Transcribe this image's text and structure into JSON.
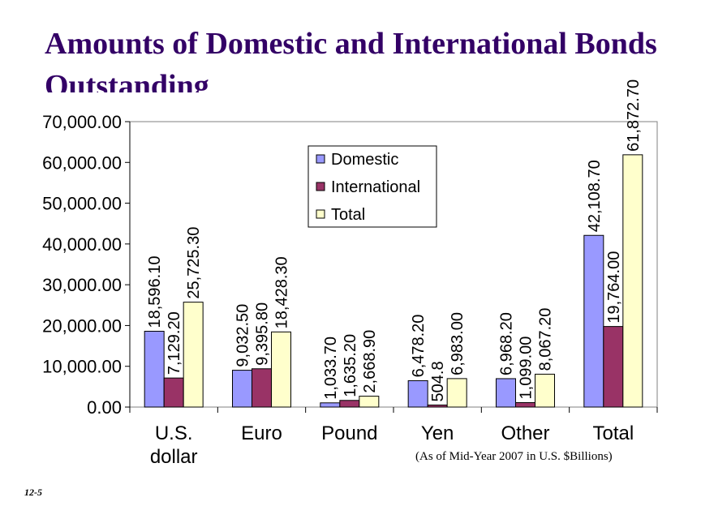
{
  "slide": {
    "title": "Amounts of Domestic and International Bonds Outstanding",
    "footnote": "(As of Mid-Year 2007 in U.S. $Billions)",
    "slide_number": "12-5"
  },
  "chart_data": {
    "type": "bar",
    "title": "",
    "xlabel": "",
    "ylabel": "",
    "categories": [
      "U.S. dollar",
      "Euro",
      "Pound",
      "Yen",
      "Other",
      "Total"
    ],
    "category_lines": [
      [
        "U.S.",
        "dollar"
      ],
      [
        "Euro"
      ],
      [
        "Pound"
      ],
      [
        "Yen"
      ],
      [
        "Other"
      ],
      [
        "Total"
      ]
    ],
    "series": [
      {
        "name": "Domestic",
        "color": "#9999ff",
        "values": [
          18596.1,
          9032.5,
          1033.7,
          6478.2,
          6968.2,
          42108.7
        ],
        "labels": [
          "18,596.10",
          "9,032.50",
          "1,033.70",
          "6,478.20",
          "6,968.20",
          "42,108.70"
        ]
      },
      {
        "name": "International",
        "color": "#993366",
        "values": [
          7129.2,
          9395.8,
          1635.2,
          504.8,
          1099.0,
          19764.0
        ],
        "labels": [
          "7,129.20",
          "9,395.80",
          "1,635.20",
          "504.8",
          "1,099.00",
          "19,764.00"
        ]
      },
      {
        "name": "Total",
        "color": "#ffffcc",
        "values": [
          25725.3,
          18428.3,
          2668.9,
          6983.0,
          8067.2,
          61872.7
        ],
        "labels": [
          "25,725.30",
          "18,428.30",
          "2,668.90",
          "6,983.00",
          "8,067.20",
          "61,872.70"
        ]
      }
    ],
    "yticks": [
      {
        "value": 0,
        "label": "0.00"
      },
      {
        "value": 10000,
        "label": "10,000.00"
      },
      {
        "value": 20000,
        "label": "20,000.00"
      },
      {
        "value": 30000,
        "label": "30,000.00"
      },
      {
        "value": 40000,
        "label": "40,000.00"
      },
      {
        "value": 50000,
        "label": "50,000.00"
      },
      {
        "value": 60000,
        "label": "60,000.00"
      },
      {
        "value": 70000,
        "label": "70,000.00"
      }
    ],
    "ylim": [
      0,
      70000
    ],
    "grid": false,
    "legend_position": "top-center"
  }
}
